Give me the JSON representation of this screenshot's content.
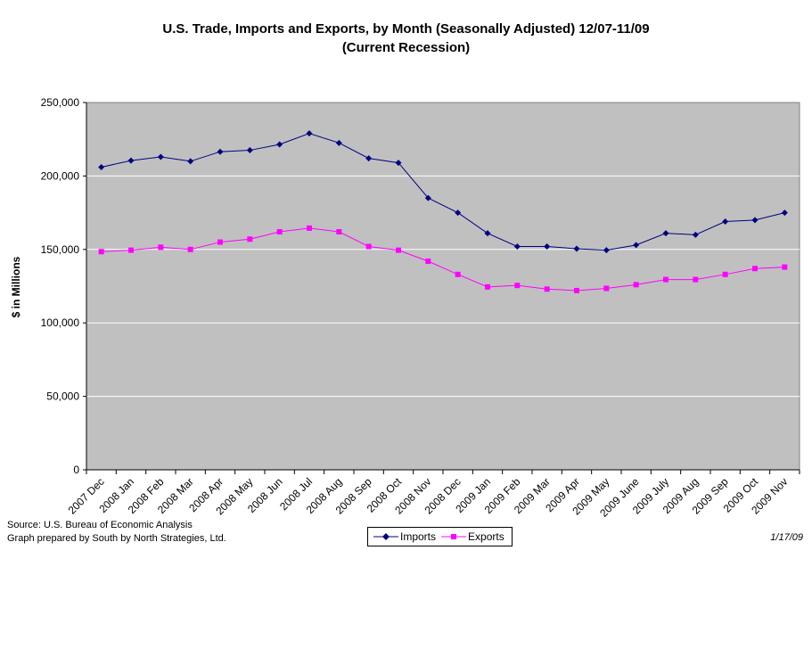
{
  "chart_data": {
    "type": "line",
    "title": "U.S. Trade, Imports and Exports, by Month (Seasonally Adjusted) 12/07-11/09",
    "subtitle": "(Current Recession)",
    "xlabel": "",
    "ylabel": "$ in Millions",
    "ylim": [
      0,
      250000
    ],
    "yticks": [
      "0",
      "50,000",
      "100,000",
      "150,000",
      "200,000",
      "250,000"
    ],
    "grid": true,
    "legend_position": "bottom",
    "categories": [
      "2007 Dec",
      "2008 Jan",
      "2008 Feb",
      "2008 Mar",
      "2008 Apr",
      "2008 May",
      "2008 Jun",
      "2008 Jul",
      "2008 Aug",
      "2008 Sep",
      "2008 Oct",
      "2008 Nov",
      "2008 Dec",
      "2009 Jan",
      "2009 Feb",
      "2009 Mar",
      "2009 Apr",
      "2009 May",
      "2009 June",
      "2009 July",
      "2009 Aug",
      "2009 Sep",
      "2009 Oct",
      "2009 Nov"
    ],
    "series": [
      {
        "name": "Imports",
        "color": "#000080",
        "marker": "diamond",
        "values": [
          206000,
          210500,
          213000,
          210000,
          216500,
          217500,
          221500,
          229000,
          222500,
          212000,
          209000,
          185000,
          175000,
          161000,
          152000,
          152000,
          150500,
          149500,
          153000,
          161000,
          160000,
          169000,
          170000,
          175000
        ]
      },
      {
        "name": "Exports",
        "color": "#ff00ff",
        "marker": "square",
        "values": [
          148500,
          149500,
          151500,
          150000,
          155000,
          157000,
          162000,
          164500,
          162000,
          152000,
          149500,
          142000,
          133000,
          124500,
          125500,
          123000,
          122000,
          123500,
          126000,
          129500,
          129500,
          133000,
          137000,
          138000
        ]
      }
    ],
    "plot_background": "#c0c0c0"
  },
  "notes": {
    "source": "Source: U.S. Bureau of Economic Analysis",
    "prepared": "Graph prepared by South by North Strategies, Ltd.",
    "date": "1/17/09"
  }
}
